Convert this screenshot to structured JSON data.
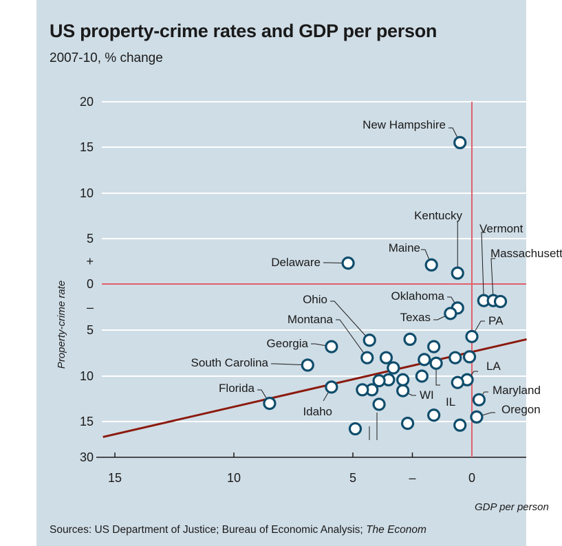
{
  "title": "US property-crime rates and GDP per person",
  "subtitle": "2007-10, % change",
  "source": {
    "main": "Sources: US Department of Justice; Bureau of Economic Analysis;",
    "publication": "The Econom"
  },
  "colors": {
    "background": "#cfdde6",
    "zero_line": "#e0606a",
    "trend_line": "#8b1a0e",
    "point_stroke": "#0f4d6c",
    "point_fill": "#ffffff",
    "grid": "#ffffff"
  },
  "chart_data": {
    "type": "scatter",
    "title": "US property-crime rates and GDP per person",
    "subtitle": "2007-10, % change",
    "xlabel": "GDP per person",
    "ylabel": "Property-crime rate",
    "x_axis": {
      "reversed": true,
      "ticks": [
        "15",
        "10",
        "5",
        "–",
        "0"
      ],
      "tick_values": [
        15,
        10,
        5,
        2.5,
        0
      ],
      "range": [
        15.5,
        -2.3
      ]
    },
    "y_axis": {
      "reversed": true,
      "ticks": [
        "20",
        "15",
        "10",
        "5",
        "+",
        "0",
        "–",
        "5",
        "10",
        "15",
        "30"
      ],
      "scale_note": "broken scale: increases above zero, decreases below; bottom tick jumps to 30"
    },
    "grid": "horizontal",
    "trend_line": {
      "from": [
        15.5,
        16.7
      ],
      "to": [
        -2.3,
        6.0
      ]
    },
    "points": [
      {
        "label": "New Hampshire",
        "x": 0.5,
        "y": -15.5
      },
      {
        "label": "Kentucky",
        "x": 0.6,
        "y": -1.2
      },
      {
        "label": "Vermont",
        "x": -0.5,
        "y": 1.8
      },
      {
        "label": "Massachusetts",
        "x": -0.9,
        "y": 1.8
      },
      {
        "label": "",
        "x": -1.2,
        "y": 1.9
      },
      {
        "label": "Maine",
        "x": 1.7,
        "y": -2.1
      },
      {
        "label": "Delaware",
        "x": 5.2,
        "y": -2.3
      },
      {
        "label": "Oklahoma",
        "x": 0.6,
        "y": 2.6
      },
      {
        "label": "Texas",
        "x": 0.9,
        "y": 3.2
      },
      {
        "label": "PA",
        "x": 0.0,
        "y": 5.7
      },
      {
        "label": "Ohio",
        "x": 4.3,
        "y": 6.1
      },
      {
        "label": "Montana",
        "x": 4.4,
        "y": 8.0
      },
      {
        "label": "Georgia",
        "x": 5.9,
        "y": 6.8
      },
      {
        "label": "South Carolina",
        "x": 6.9,
        "y": 8.8
      },
      {
        "label": "Florida",
        "x": 8.5,
        "y": 13.0
      },
      {
        "label": "Idaho",
        "x": 5.9,
        "y": 11.2
      },
      {
        "label": "WI",
        "x": 2.9,
        "y": 11.6
      },
      {
        "label": "IL",
        "x": 1.5,
        "y": 8.6
      },
      {
        "label": "LA",
        "x": 0.2,
        "y": 10.4
      },
      {
        "label": "Maryland",
        "x": -0.3,
        "y": 12.6
      },
      {
        "label": "Oregon",
        "x": -0.2,
        "y": 14.5
      },
      {
        "label": "",
        "x": 2.6,
        "y": 6.0
      },
      {
        "label": "",
        "x": 1.6,
        "y": 6.8
      },
      {
        "label": "",
        "x": 2.0,
        "y": 8.2
      },
      {
        "label": "",
        "x": 0.7,
        "y": 8.0
      },
      {
        "label": "",
        "x": 0.1,
        "y": 7.9
      },
      {
        "label": "",
        "x": 3.6,
        "y": 8.0
      },
      {
        "label": "",
        "x": 3.3,
        "y": 9.1
      },
      {
        "label": "",
        "x": 2.1,
        "y": 10.0
      },
      {
        "label": "",
        "x": 2.9,
        "y": 10.4
      },
      {
        "label": "",
        "x": 3.5,
        "y": 10.4
      },
      {
        "label": "",
        "x": 3.9,
        "y": 10.5
      },
      {
        "label": "",
        "x": 0.6,
        "y": 10.7
      },
      {
        "label": "",
        "x": 4.2,
        "y": 11.5
      },
      {
        "label": "",
        "x": 4.6,
        "y": 11.5
      },
      {
        "label": "",
        "x": 3.9,
        "y": 13.1
      },
      {
        "label": "",
        "x": 1.6,
        "y": 14.3
      },
      {
        "label": "",
        "x": 2.7,
        "y": 15.2
      },
      {
        "label": "",
        "x": 0.5,
        "y": 15.4
      },
      {
        "label": "",
        "x": 4.9,
        "y": 15.8
      }
    ]
  }
}
